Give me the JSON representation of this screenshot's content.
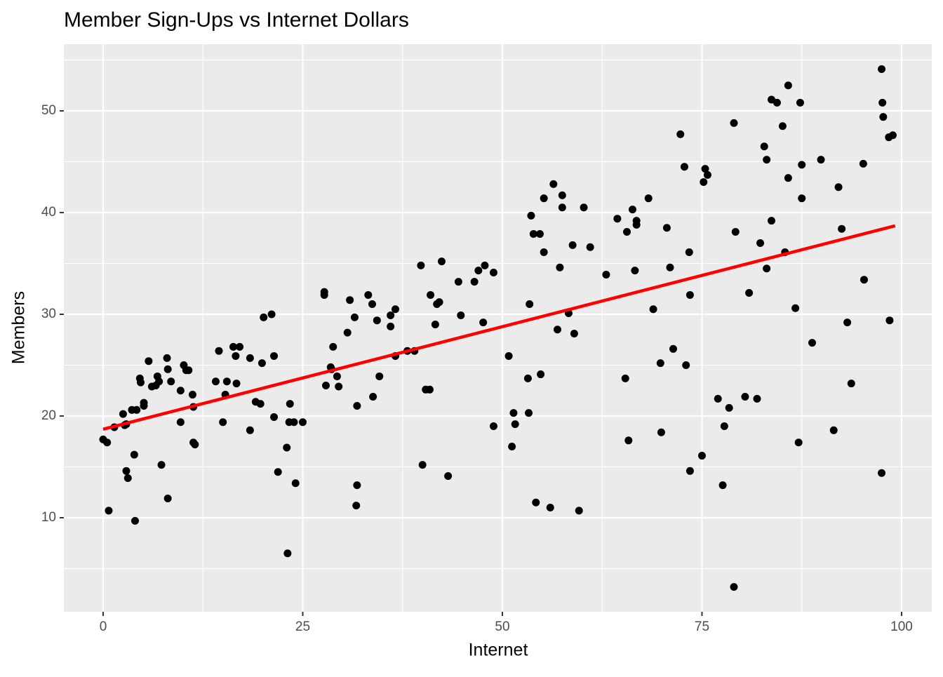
{
  "chart_data": {
    "type": "scatter",
    "title": "Member Sign-Ups vs Internet Dollars",
    "x_label": "Internet",
    "y_label": "Members",
    "color": "#000000",
    "x": [
      0,
      0.5,
      0.7,
      1.4,
      2.5,
      2.7,
      2.9,
      2.9,
      3.1,
      3.6,
      3.9,
      4.0,
      4.2,
      4.6,
      4.7,
      5.1,
      5.1,
      5.7,
      6.1,
      6.6,
      6.8,
      7.0,
      7.3,
      8.0,
      8.1,
      8.1,
      8.5,
      9.7,
      9.7,
      10.1,
      10.4,
      10.7,
      11.2,
      11.3,
      11.3,
      11.5,
      14.1,
      14.5,
      15.0,
      15.3,
      15.5,
      16.3,
      16.6,
      16.7,
      17.1,
      18.4,
      18.4,
      19.1,
      19.7,
      19.9,
      20.1,
      21.1,
      21.4,
      21.4,
      21.9,
      23.0,
      23.1,
      23.4,
      23.3,
      23.9,
      24.1,
      25.0,
      27.7,
      27.7,
      27.9,
      28.5,
      28.6,
      28.8,
      29.3,
      29.5,
      30.6,
      30.9,
      31.5,
      31.7,
      31.8,
      31.8,
      33.2,
      33.7,
      33.8,
      34.3,
      34.6,
      36.0,
      36.0,
      36.6,
      36.6,
      38.1,
      39.0,
      39.8,
      40.0,
      40.4,
      40.9,
      41.0,
      41.6,
      41.8,
      42.1,
      42.4,
      43.2,
      44.5,
      44.8,
      46.5,
      47.0,
      47.6,
      47.8,
      48.9,
      48.9,
      50.8,
      51.2,
      51.4,
      51.6,
      53.2,
      53.3,
      53.4,
      53.6,
      53.9,
      54.2,
      54.7,
      54.8,
      55.2,
      55.2,
      56.0,
      56.4,
      56.9,
      57.2,
      57.5,
      57.5,
      58.3,
      58.8,
      59.0,
      59.6,
      60.2,
      61.0,
      63.0,
      64.4,
      65.4,
      65.6,
      65.8,
      66.3,
      66.6,
      66.8,
      66.8,
      68.3,
      68.9,
      69.8,
      69.9,
      70.6,
      71.0,
      71.4,
      72.3,
      72.8,
      73.0,
      73.4,
      73.5,
      73.5,
      75.0,
      75.2,
      75.4,
      75.7,
      77.0,
      77.6,
      77.8,
      78.4,
      79.0,
      79.0,
      79.2,
      80.4,
      80.9,
      81.9,
      82.3,
      82.8,
      83.1,
      83.1,
      83.7,
      83.7,
      84.4,
      85.1,
      85.4,
      85.8,
      85.8,
      86.7,
      87.1,
      87.3,
      87.5,
      87.5,
      88.8,
      89.9,
      91.5,
      92.1,
      92.5,
      93.2,
      93.7,
      95.2,
      95.3,
      97.5,
      97.5,
      97.6,
      97.7,
      98.4,
      98.5,
      98.9
    ],
    "values": [
      17.7,
      17.4,
      10.7,
      18.9,
      20.2,
      19.1,
      19.2,
      14.6,
      13.9,
      20.6,
      16.2,
      9.7,
      20.6,
      23.7,
      23.3,
      21.0,
      21.3,
      25.4,
      22.9,
      23.0,
      23.9,
      23.4,
      15.2,
      25.7,
      24.6,
      11.9,
      23.4,
      22.5,
      19.4,
      25.0,
      24.5,
      24.5,
      22.1,
      20.9,
      17.4,
      17.2,
      23.4,
      26.4,
      19.4,
      22.1,
      23.4,
      26.8,
      25.9,
      23.2,
      26.8,
      25.7,
      18.6,
      21.4,
      21.2,
      25.2,
      29.7,
      30.0,
      25.9,
      19.9,
      14.5,
      16.9,
      6.5,
      21.2,
      19.4,
      19.4,
      13.4,
      19.4,
      32.2,
      31.9,
      23.0,
      24.8,
      24.6,
      26.8,
      23.9,
      22.9,
      28.2,
      31.4,
      29.7,
      11.2,
      21.0,
      13.2,
      31.9,
      31.0,
      21.9,
      29.4,
      23.9,
      29.9,
      28.8,
      30.5,
      25.9,
      26.4,
      26.4,
      34.8,
      15.2,
      22.6,
      22.6,
      31.9,
      29.0,
      31.0,
      31.2,
      35.2,
      14.1,
      33.2,
      29.9,
      33.2,
      34.3,
      29.2,
      34.8,
      34.1,
      19.0,
      25.9,
      17.0,
      20.3,
      19.2,
      23.7,
      20.3,
      31.0,
      39.7,
      37.9,
      11.5,
      37.9,
      24.1,
      41.4,
      36.1,
      11.0,
      42.8,
      28.5,
      34.6,
      41.7,
      40.5,
      30.1,
      36.8,
      28.1,
      10.7,
      40.5,
      36.6,
      33.9,
      39.4,
      23.7,
      38.1,
      17.6,
      40.3,
      34.3,
      39.2,
      38.8,
      41.4,
      30.5,
      25.2,
      18.4,
      38.5,
      34.6,
      26.6,
      47.7,
      44.5,
      25.0,
      36.1,
      14.6,
      31.9,
      16.1,
      43.0,
      44.3,
      43.7,
      21.7,
      13.2,
      19.0,
      20.8,
      48.8,
      3.2,
      38.1,
      21.9,
      32.1,
      21.7,
      37.0,
      46.5,
      45.2,
      34.5,
      39.2,
      51.1,
      50.8,
      48.5,
      36.1,
      43.4,
      52.5,
      30.6,
      17.4,
      50.8,
      44.7,
      41.4,
      27.2,
      45.2,
      18.6,
      42.5,
      38.4,
      29.2,
      23.2,
      44.8,
      33.4,
      54.1,
      14.4,
      50.8,
      49.4,
      47.4,
      29.4,
      47.6
    ],
    "trend_line": {
      "x": [
        0,
        99.2
      ],
      "values": [
        18.7,
        38.7
      ],
      "color": "#ff0000"
    },
    "xlim": [
      -4.92,
      103.78
    ],
    "ylim": [
      0.76,
      56.55
    ],
    "xticks": [
      0,
      25,
      50,
      75,
      100
    ],
    "yticks": [
      10,
      20,
      30,
      40,
      50
    ],
    "grid": true
  }
}
